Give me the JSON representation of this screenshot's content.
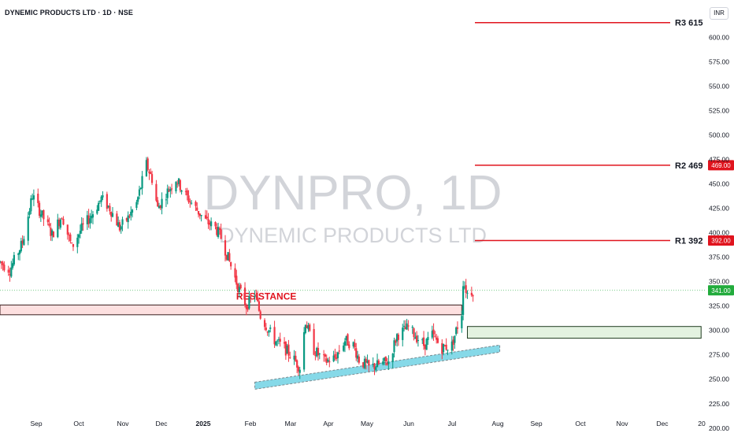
{
  "header": {
    "symbol_title": "DYNEMIC PRODUCTS LTD · 1D · NSE",
    "currency": "INR"
  },
  "watermark": {
    "ticker": "DYNPRO, 1D",
    "company": "DYNEMIC PRODUCTS LTD"
  },
  "colors": {
    "up": "#089981",
    "down": "#f23645",
    "level_line": "#e0141e",
    "resistance_fill": "#fde0e0",
    "support_fill": "#e3f2e0",
    "trendline_fill": "#86d9e8",
    "price_badge": "#22ab3c"
  },
  "chart_data": {
    "type": "candlestick",
    "title": "DYNEMIC PRODUCTS LTD · 1D · NSE",
    "currency": "INR",
    "y_axis": {
      "ylim": [
        195,
        622
      ],
      "ticks": [
        "200.00",
        "225.00",
        "250.00",
        "275.00",
        "300.00",
        "325.00",
        "350.00",
        "375.00",
        "400.00",
        "425.00",
        "450.00",
        "475.00",
        "500.00",
        "525.00",
        "550.00",
        "575.00",
        "600.00"
      ]
    },
    "x_axis": {
      "labels": [
        "Sep",
        "Oct",
        "Nov",
        "Dec",
        "2025",
        "Feb",
        "Mar",
        "Apr",
        "May",
        "Jun",
        "Jul",
        "Aug",
        "Sep",
        "Oct",
        "Nov",
        "Dec",
        "20"
      ]
    },
    "price_path": [
      [
        "2024-08-20",
        370
      ],
      [
        "2024-08-27",
        362
      ],
      [
        "2024-09-05",
        390
      ],
      [
        "2024-09-12",
        438
      ],
      [
        "2024-09-18",
        420
      ],
      [
        "2024-09-26",
        398
      ],
      [
        "2024-10-03",
        418
      ],
      [
        "2024-10-10",
        385
      ],
      [
        "2024-10-16",
        402
      ],
      [
        "2024-10-24",
        418
      ],
      [
        "2024-10-31",
        435
      ],
      [
        "2024-11-06",
        425
      ],
      [
        "2024-11-13",
        405
      ],
      [
        "2024-11-19",
        415
      ],
      [
        "2024-11-25",
        430
      ],
      [
        "2024-12-02",
        470
      ],
      [
        "2024-12-06",
        455
      ],
      [
        "2024-12-10",
        425
      ],
      [
        "2024-12-16",
        440
      ],
      [
        "2024-12-23",
        455
      ],
      [
        "2024-12-30",
        438
      ],
      [
        "2025-01-06",
        425
      ],
      [
        "2025-01-13",
        412
      ],
      [
        "2025-01-20",
        405
      ],
      [
        "2025-01-24",
        395
      ],
      [
        "2025-01-30",
        370
      ],
      [
        "2025-02-05",
        345
      ],
      [
        "2025-02-11",
        325
      ],
      [
        "2025-02-17",
        338
      ],
      [
        "2025-02-21",
        315
      ],
      [
        "2025-03-03",
        290
      ],
      [
        "2025-03-10",
        282
      ],
      [
        "2025-03-17",
        270
      ],
      [
        "2025-03-21",
        262
      ],
      [
        "2025-03-25",
        310
      ],
      [
        "2025-03-31",
        280
      ],
      [
        "2025-04-08",
        268
      ],
      [
        "2025-04-15",
        272
      ],
      [
        "2025-04-22",
        290
      ],
      [
        "2025-04-28",
        285
      ],
      [
        "2025-05-02",
        270
      ],
      [
        "2025-05-09",
        262
      ],
      [
        "2025-05-16",
        265
      ],
      [
        "2025-05-23",
        268
      ],
      [
        "2025-05-29",
        295
      ],
      [
        "2025-06-06",
        303
      ],
      [
        "2025-06-11",
        295
      ],
      [
        "2025-06-17",
        285
      ],
      [
        "2025-06-23",
        295
      ],
      [
        "2025-06-30",
        282
      ],
      [
        "2025-07-07",
        285
      ],
      [
        "2025-07-10",
        300
      ],
      [
        "2025-07-14",
        318
      ],
      [
        "2025-07-15",
        350
      ],
      [
        "2025-07-18",
        338
      ],
      [
        "2025-07-22",
        341
      ]
    ],
    "last_price": "341.00",
    "levels": [
      {
        "label": "R3 615",
        "price": 615,
        "badge": ""
      },
      {
        "label": "R2 469",
        "price": 469,
        "badge": "469.00"
      },
      {
        "label": "R1 392",
        "price": 392,
        "badge": "392.00"
      }
    ],
    "zones": [
      {
        "type": "resistance",
        "label": "RESISTANCE",
        "from_date": "2024-08-20",
        "to_date": "2025-07-14",
        "low": 316,
        "high": 326
      },
      {
        "type": "support",
        "label": "",
        "from_date": "2025-07-18",
        "to_date": "2025-12-31",
        "low": 292,
        "high": 304
      }
    ],
    "trendline": {
      "start_date": "2025-02-17",
      "start_price": 247,
      "end_date": "2025-08-10",
      "end_price": 285
    }
  }
}
